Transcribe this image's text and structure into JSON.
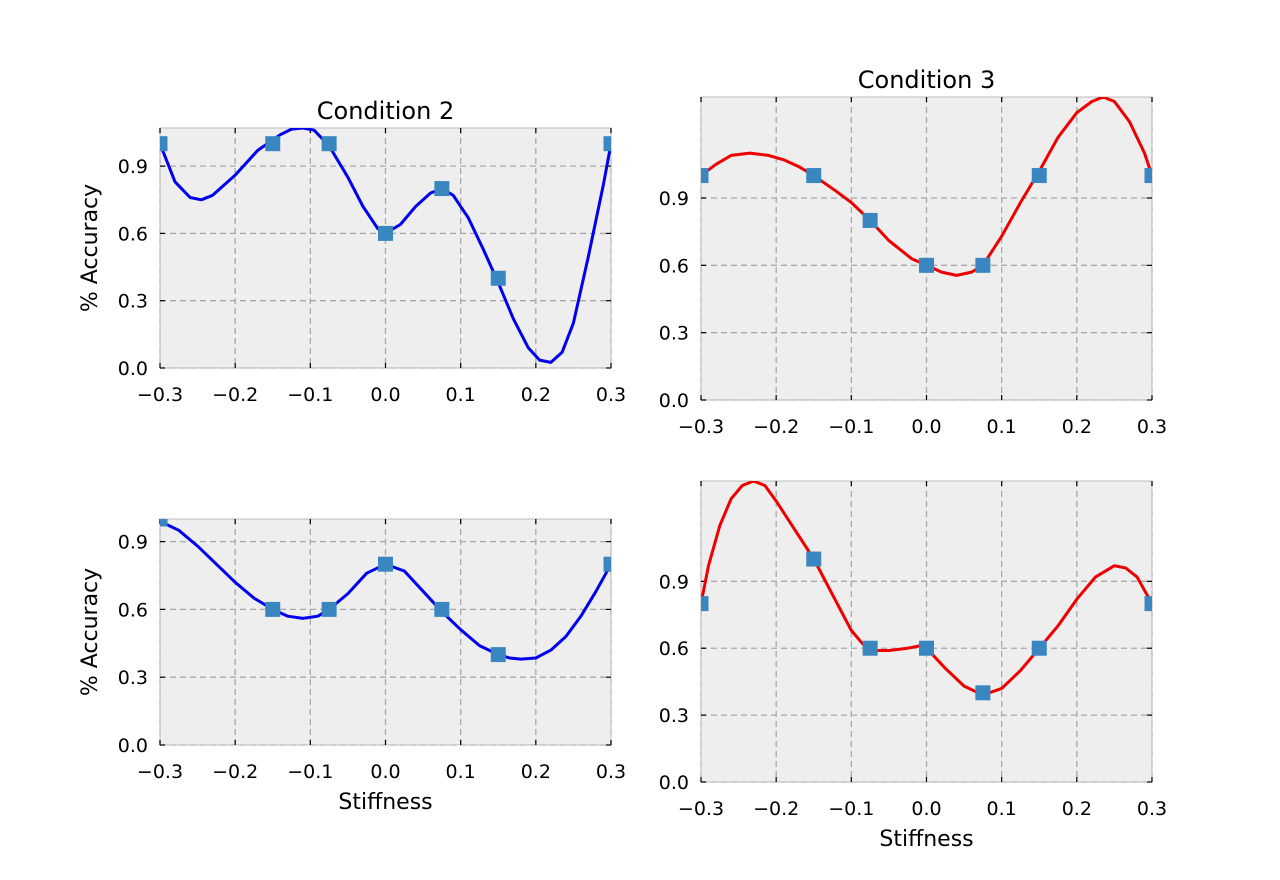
{
  "chart_data": [
    {
      "type": "line",
      "title": "Condition 2",
      "xlabel": "",
      "ylabel": "% Accuracy",
      "xlim": [
        -0.3,
        0.3
      ],
      "ylim": [
        0.0,
        1.07
      ],
      "xticks": [
        -0.3,
        -0.2,
        -0.1,
        0.0,
        0.1,
        0.2,
        0.3
      ],
      "xtick_labels": [
        "−0.3",
        "−0.2",
        "−0.1",
        "0.0",
        "0.1",
        "0.2",
        "0.3"
      ],
      "yticks": [
        0.0,
        0.3,
        0.6,
        0.9
      ],
      "ytick_labels": [
        "0.0",
        "0.3",
        "0.6",
        "0.9"
      ],
      "grid": true,
      "line_color": "#0000ee",
      "marker_color": "#3a86c0",
      "points": {
        "x": [
          -0.3,
          -0.15,
          -0.075,
          0.0,
          0.075,
          0.15,
          0.3
        ],
        "y": [
          1.0,
          1.0,
          1.0,
          0.6,
          0.8,
          0.4,
          1.0
        ]
      },
      "curve": {
        "x": [
          -0.3,
          -0.28,
          -0.26,
          -0.245,
          -0.23,
          -0.2,
          -0.17,
          -0.14,
          -0.125,
          -0.11,
          -0.095,
          -0.075,
          -0.05,
          -0.03,
          -0.01,
          0.0,
          0.02,
          0.04,
          0.06,
          0.075,
          0.09,
          0.11,
          0.13,
          0.15,
          0.17,
          0.19,
          0.205,
          0.22,
          0.235,
          0.25,
          0.27,
          0.29,
          0.3
        ],
        "y": [
          1.0,
          0.83,
          0.76,
          0.75,
          0.77,
          0.86,
          0.97,
          1.04,
          1.065,
          1.07,
          1.06,
          0.99,
          0.85,
          0.72,
          0.62,
          0.6,
          0.64,
          0.72,
          0.78,
          0.8,
          0.77,
          0.67,
          0.53,
          0.38,
          0.22,
          0.09,
          0.035,
          0.025,
          0.07,
          0.2,
          0.5,
          0.82,
          1.0
        ]
      }
    },
    {
      "type": "line",
      "title": "Condition 3",
      "xlabel": "",
      "ylabel": "",
      "xlim": [
        -0.3,
        0.3
      ],
      "ylim": [
        0.0,
        1.35
      ],
      "xticks": [
        -0.3,
        -0.2,
        -0.1,
        0.0,
        0.1,
        0.2,
        0.3
      ],
      "xtick_labels": [
        "−0.3",
        "−0.2",
        "−0.1",
        "0.0",
        "0.1",
        "0.2",
        "0.3"
      ],
      "yticks": [
        0.0,
        0.3,
        0.6,
        0.9
      ],
      "ytick_labels": [
        "0.0",
        "0.3",
        "0.6",
        "0.9"
      ],
      "grid": true,
      "line_color": "#ee0000",
      "marker_color": "#3a86c0",
      "points": {
        "x": [
          -0.3,
          -0.15,
          -0.075,
          0.0,
          0.075,
          0.15,
          0.3
        ],
        "y": [
          1.0,
          1.0,
          0.8,
          0.6,
          0.6,
          1.0,
          1.0
        ]
      },
      "curve": {
        "x": [
          -0.3,
          -0.28,
          -0.26,
          -0.235,
          -0.21,
          -0.19,
          -0.17,
          -0.15,
          -0.12,
          -0.1,
          -0.075,
          -0.05,
          -0.02,
          0.0,
          0.02,
          0.04,
          0.06,
          0.075,
          0.1,
          0.125,
          0.15,
          0.175,
          0.2,
          0.22,
          0.235,
          0.25,
          0.27,
          0.29,
          0.3
        ],
        "y": [
          1.0,
          1.05,
          1.09,
          1.1,
          1.09,
          1.07,
          1.04,
          1.0,
          0.93,
          0.88,
          0.8,
          0.71,
          0.63,
          0.6,
          0.57,
          0.555,
          0.57,
          0.6,
          0.73,
          0.88,
          1.02,
          1.17,
          1.28,
          1.33,
          1.35,
          1.33,
          1.24,
          1.1,
          1.0
        ]
      }
    },
    {
      "type": "line",
      "title": "",
      "xlabel": "Stiffness",
      "ylabel": "% Accuracy",
      "xlim": [
        -0.3,
        0.3
      ],
      "ylim": [
        0.0,
        1.0
      ],
      "xticks": [
        -0.3,
        -0.2,
        -0.1,
        0.0,
        0.1,
        0.2,
        0.3
      ],
      "xtick_labels": [
        "−0.3",
        "−0.2",
        "−0.1",
        "0.0",
        "0.1",
        "0.2",
        "0.3"
      ],
      "yticks": [
        0.0,
        0.3,
        0.6,
        0.9
      ],
      "ytick_labels": [
        "0.0",
        "0.3",
        "0.6",
        "0.9"
      ],
      "grid": true,
      "line_color": "#0000ee",
      "marker_color": "#3a86c0",
      "points": {
        "x": [
          -0.3,
          -0.15,
          -0.075,
          0.0,
          0.075,
          0.15,
          0.3
        ],
        "y": [
          1.0,
          0.6,
          0.6,
          0.8,
          0.6,
          0.4,
          0.8
        ]
      },
      "curve": {
        "x": [
          -0.3,
          -0.275,
          -0.25,
          -0.225,
          -0.2,
          -0.175,
          -0.15,
          -0.13,
          -0.11,
          -0.09,
          -0.075,
          -0.05,
          -0.025,
          0.0,
          0.025,
          0.05,
          0.075,
          0.1,
          0.125,
          0.15,
          0.165,
          0.18,
          0.2,
          0.22,
          0.24,
          0.26,
          0.28,
          0.3
        ],
        "y": [
          0.99,
          0.95,
          0.88,
          0.8,
          0.72,
          0.65,
          0.6,
          0.57,
          0.56,
          0.57,
          0.6,
          0.67,
          0.76,
          0.8,
          0.77,
          0.68,
          0.59,
          0.51,
          0.44,
          0.4,
          0.385,
          0.38,
          0.385,
          0.42,
          0.48,
          0.57,
          0.68,
          0.8
        ]
      }
    },
    {
      "type": "line",
      "title": "",
      "xlabel": "Stiffness",
      "ylabel": "",
      "xlim": [
        -0.3,
        0.3
      ],
      "ylim": [
        0.0,
        1.35
      ],
      "xticks": [
        -0.3,
        -0.2,
        -0.1,
        0.0,
        0.1,
        0.2,
        0.3
      ],
      "xtick_labels": [
        "−0.3",
        "−0.2",
        "−0.1",
        "0.0",
        "0.1",
        "0.2",
        "0.3"
      ],
      "yticks": [
        0.0,
        0.3,
        0.6,
        0.9
      ],
      "ytick_labels": [
        "0.0",
        "0.3",
        "0.6",
        "0.9"
      ],
      "grid": true,
      "line_color": "#ee0000",
      "marker_color": "#3a86c0",
      "points": {
        "x": [
          -0.3,
          -0.15,
          -0.075,
          0.0,
          0.075,
          0.15,
          0.3
        ],
        "y": [
          0.8,
          1.0,
          0.6,
          0.6,
          0.4,
          0.6,
          0.8
        ]
      },
      "curve": {
        "x": [
          -0.3,
          -0.29,
          -0.275,
          -0.26,
          -0.245,
          -0.23,
          -0.215,
          -0.2,
          -0.175,
          -0.15,
          -0.125,
          -0.1,
          -0.085,
          -0.075,
          -0.05,
          -0.025,
          -0.01,
          0.0,
          0.025,
          0.05,
          0.075,
          0.1,
          0.125,
          0.15,
          0.175,
          0.2,
          0.225,
          0.25,
          0.265,
          0.28,
          0.29,
          0.3
        ],
        "y": [
          0.8,
          0.97,
          1.15,
          1.27,
          1.33,
          1.35,
          1.33,
          1.26,
          1.13,
          1.0,
          0.84,
          0.68,
          0.62,
          0.59,
          0.59,
          0.6,
          0.61,
          0.6,
          0.51,
          0.43,
          0.39,
          0.42,
          0.5,
          0.6,
          0.7,
          0.82,
          0.92,
          0.97,
          0.96,
          0.92,
          0.86,
          0.8
        ]
      }
    }
  ]
}
